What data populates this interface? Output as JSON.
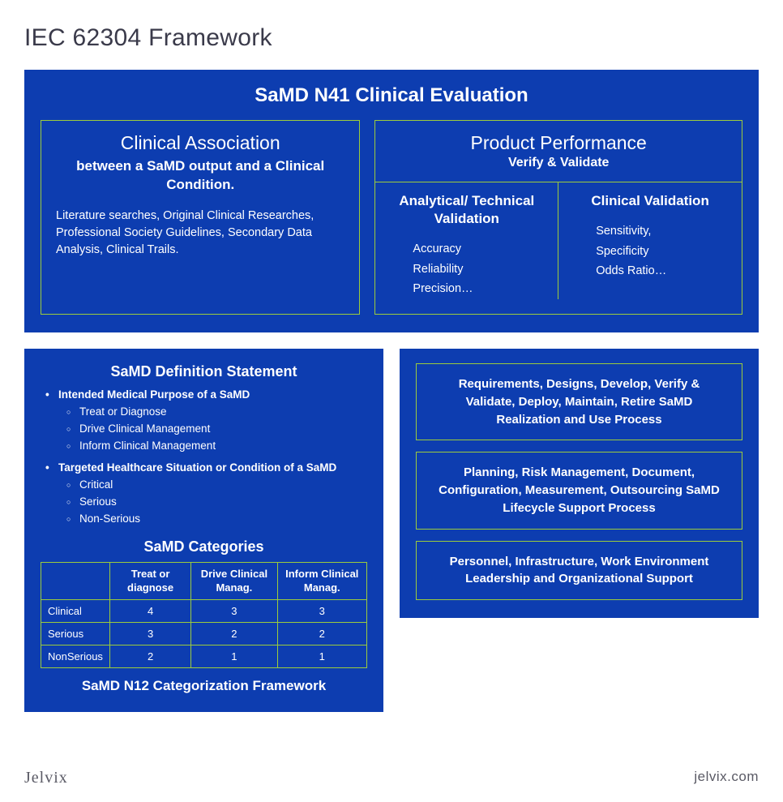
{
  "title": "IEC 62304 Framework",
  "colors": {
    "panel_bg": "#0d3db0",
    "border": "#9CCC3C",
    "text_on_panel": "#ffffff",
    "page_bg": "#ffffff",
    "heading": "#3a3a4a"
  },
  "clinical_eval": {
    "title": "SaMD N41 Clinical Evaluation",
    "clinical_association": {
      "title": "Clinical Association",
      "subtitle": "between a SaMD output and a Clinical Condition.",
      "body": "Literature searches, Original Clinical Researches, Professional Society Guidelines, Secondary Data Analysis, Clinical Trails."
    },
    "product_performance": {
      "title": "Product Performance",
      "subtitle": "Verify & Validate",
      "analytical": {
        "title": "Analytical/ Technical Validation",
        "items": [
          "Accuracy",
          "Reliability",
          "Precision…"
        ]
      },
      "clinical": {
        "title": "Clinical Validation",
        "items": [
          "Sensitivity,",
          "Specificity",
          "Odds Ratio…"
        ]
      }
    }
  },
  "definition": {
    "title": "SaMD Definition Statement",
    "items": [
      {
        "label": "Intended Medical Purpose of a SaMD",
        "sub": [
          "Treat or Diagnose",
          "Drive Clinical Management",
          "Inform Clinical Management"
        ]
      },
      {
        "label": "Targeted Healthcare Situation or Condition of a SaMD",
        "sub": [
          "Critical",
          "Serious",
          "Non-Serious"
        ]
      }
    ]
  },
  "categories": {
    "title": "SaMD Categories",
    "columns": [
      "",
      "Treat or diagnose",
      "Drive Clinical Manag.",
      "Inform Clinical Manag."
    ],
    "rows": [
      [
        "Clinical",
        "4",
        "3",
        "3"
      ],
      [
        "Serious",
        "3",
        "2",
        "2"
      ],
      [
        "NonSerious",
        "2",
        "1",
        "1"
      ]
    ],
    "footer": "SaMD N12 Categorization Framework"
  },
  "processes": [
    "Requirements, Designs, Develop, Verify & Validate, Deploy, Maintain, Retire SaMD Realization and Use Process",
    "Planning, Risk Management, Document, Configuration, Measurement, Outsourcing SaMD Lifecycle Support Process",
    "Personnel, Infrastructure, Work Environment Leadership and Organizational Support"
  ],
  "footer": {
    "brand": "Jelvix",
    "url": "jelvix.com"
  }
}
